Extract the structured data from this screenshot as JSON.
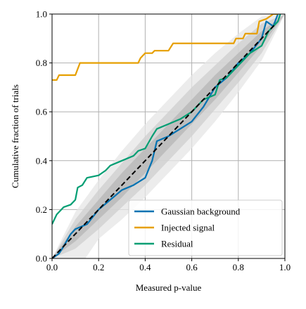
{
  "chart_data": {
    "type": "line",
    "xlabel": "Measured p-value",
    "ylabel": "Cumulative fraction of trials",
    "xlim": [
      0,
      1
    ],
    "ylim": [
      0,
      1
    ],
    "xticks": [
      {
        "value": 0,
        "label": "0.0"
      },
      0.2,
      0.4,
      0.6,
      0.8,
      {
        "value": 1,
        "label": "1.0"
      }
    ],
    "yticks": [
      {
        "value": 0,
        "label": "0.0"
      },
      0.2,
      0.4,
      0.6,
      0.8,
      {
        "value": 1,
        "label": "1.0"
      }
    ],
    "grid": true,
    "legend_loc": "lower right",
    "band_x": [
      0,
      0.1,
      0.2,
      0.3,
      0.4,
      0.5,
      0.6,
      0.7,
      0.8,
      0.9,
      1
    ],
    "bands": [
      {
        "color": "#e6e6e6",
        "lower": [
          0,
          -0.06,
          0.08,
          0.16,
          0.25,
          0.35,
          0.45,
          0.56,
          0.68,
          0.81,
          1
        ],
        "upper": [
          0,
          0.19,
          0.32,
          0.44,
          0.55,
          0.65,
          0.75,
          0.84,
          0.92,
          0.99,
          1
        ]
      },
      {
        "color": "#cfcfcf",
        "lower": [
          0,
          0.04,
          0.12,
          0.21,
          0.3,
          0.4,
          0.5,
          0.61,
          0.72,
          0.84,
          1
        ],
        "upper": [
          0,
          0.16,
          0.28,
          0.39,
          0.5,
          0.6,
          0.7,
          0.79,
          0.88,
          0.96,
          1
        ]
      },
      {
        "color": "#b5b5b5",
        "lower": [
          0,
          0.07,
          0.16,
          0.25,
          0.35,
          0.45,
          0.55,
          0.65,
          0.76,
          0.87,
          1
        ],
        "upper": [
          0,
          0.13,
          0.24,
          0.35,
          0.45,
          0.55,
          0.65,
          0.75,
          0.84,
          0.93,
          1
        ]
      }
    ],
    "reference": {
      "color": "#000000",
      "x": [
        0,
        0.96
      ],
      "y": [
        0,
        0.96
      ]
    },
    "series": [
      {
        "name": "Gaussian background",
        "color": "#0072b2",
        "x": [
          0,
          0.03,
          0.05,
          0.08,
          0.1,
          0.15,
          0.2,
          0.25,
          0.3,
          0.35,
          0.4,
          0.43,
          0.45,
          0.5,
          0.55,
          0.6,
          0.65,
          0.7,
          0.75,
          0.8,
          0.85,
          0.9,
          0.92,
          0.95,
          0.97
        ],
        "values": [
          0,
          0.02,
          0.05,
          0.1,
          0.12,
          0.14,
          0.2,
          0.24,
          0.28,
          0.3,
          0.33,
          0.4,
          0.48,
          0.5,
          0.53,
          0.56,
          0.62,
          0.7,
          0.74,
          0.8,
          0.84,
          0.9,
          0.97,
          0.95,
          1
        ]
      },
      {
        "name": "Injected signal",
        "color": "#e69f00",
        "x": [
          0,
          0.02,
          0.03,
          0.1,
          0.12,
          0.37,
          0.38,
          0.4,
          0.43,
          0.44,
          0.5,
          0.52,
          0.78,
          0.79,
          0.82,
          0.83,
          0.88,
          0.89,
          0.92,
          0.95,
          0.97
        ],
        "values": [
          0.73,
          0.73,
          0.75,
          0.75,
          0.8,
          0.8,
          0.82,
          0.84,
          0.84,
          0.85,
          0.85,
          0.88,
          0.88,
          0.9,
          0.9,
          0.92,
          0.92,
          0.97,
          0.98,
          1,
          1
        ]
      },
      {
        "name": "Residual",
        "color": "#009e73",
        "x": [
          0,
          0.02,
          0.05,
          0.08,
          0.1,
          0.11,
          0.13,
          0.15,
          0.2,
          0.23,
          0.25,
          0.3,
          0.35,
          0.37,
          0.4,
          0.43,
          0.45,
          0.5,
          0.55,
          0.6,
          0.65,
          0.7,
          0.72,
          0.75,
          0.8,
          0.85,
          0.9,
          0.93,
          0.97,
          0.98
        ],
        "values": [
          0.14,
          0.18,
          0.21,
          0.22,
          0.24,
          0.29,
          0.3,
          0.33,
          0.34,
          0.36,
          0.38,
          0.4,
          0.42,
          0.44,
          0.45,
          0.5,
          0.53,
          0.55,
          0.57,
          0.6,
          0.65,
          0.67,
          0.73,
          0.74,
          0.79,
          0.84,
          0.87,
          0.93,
          0.97,
          1
        ]
      }
    ]
  }
}
